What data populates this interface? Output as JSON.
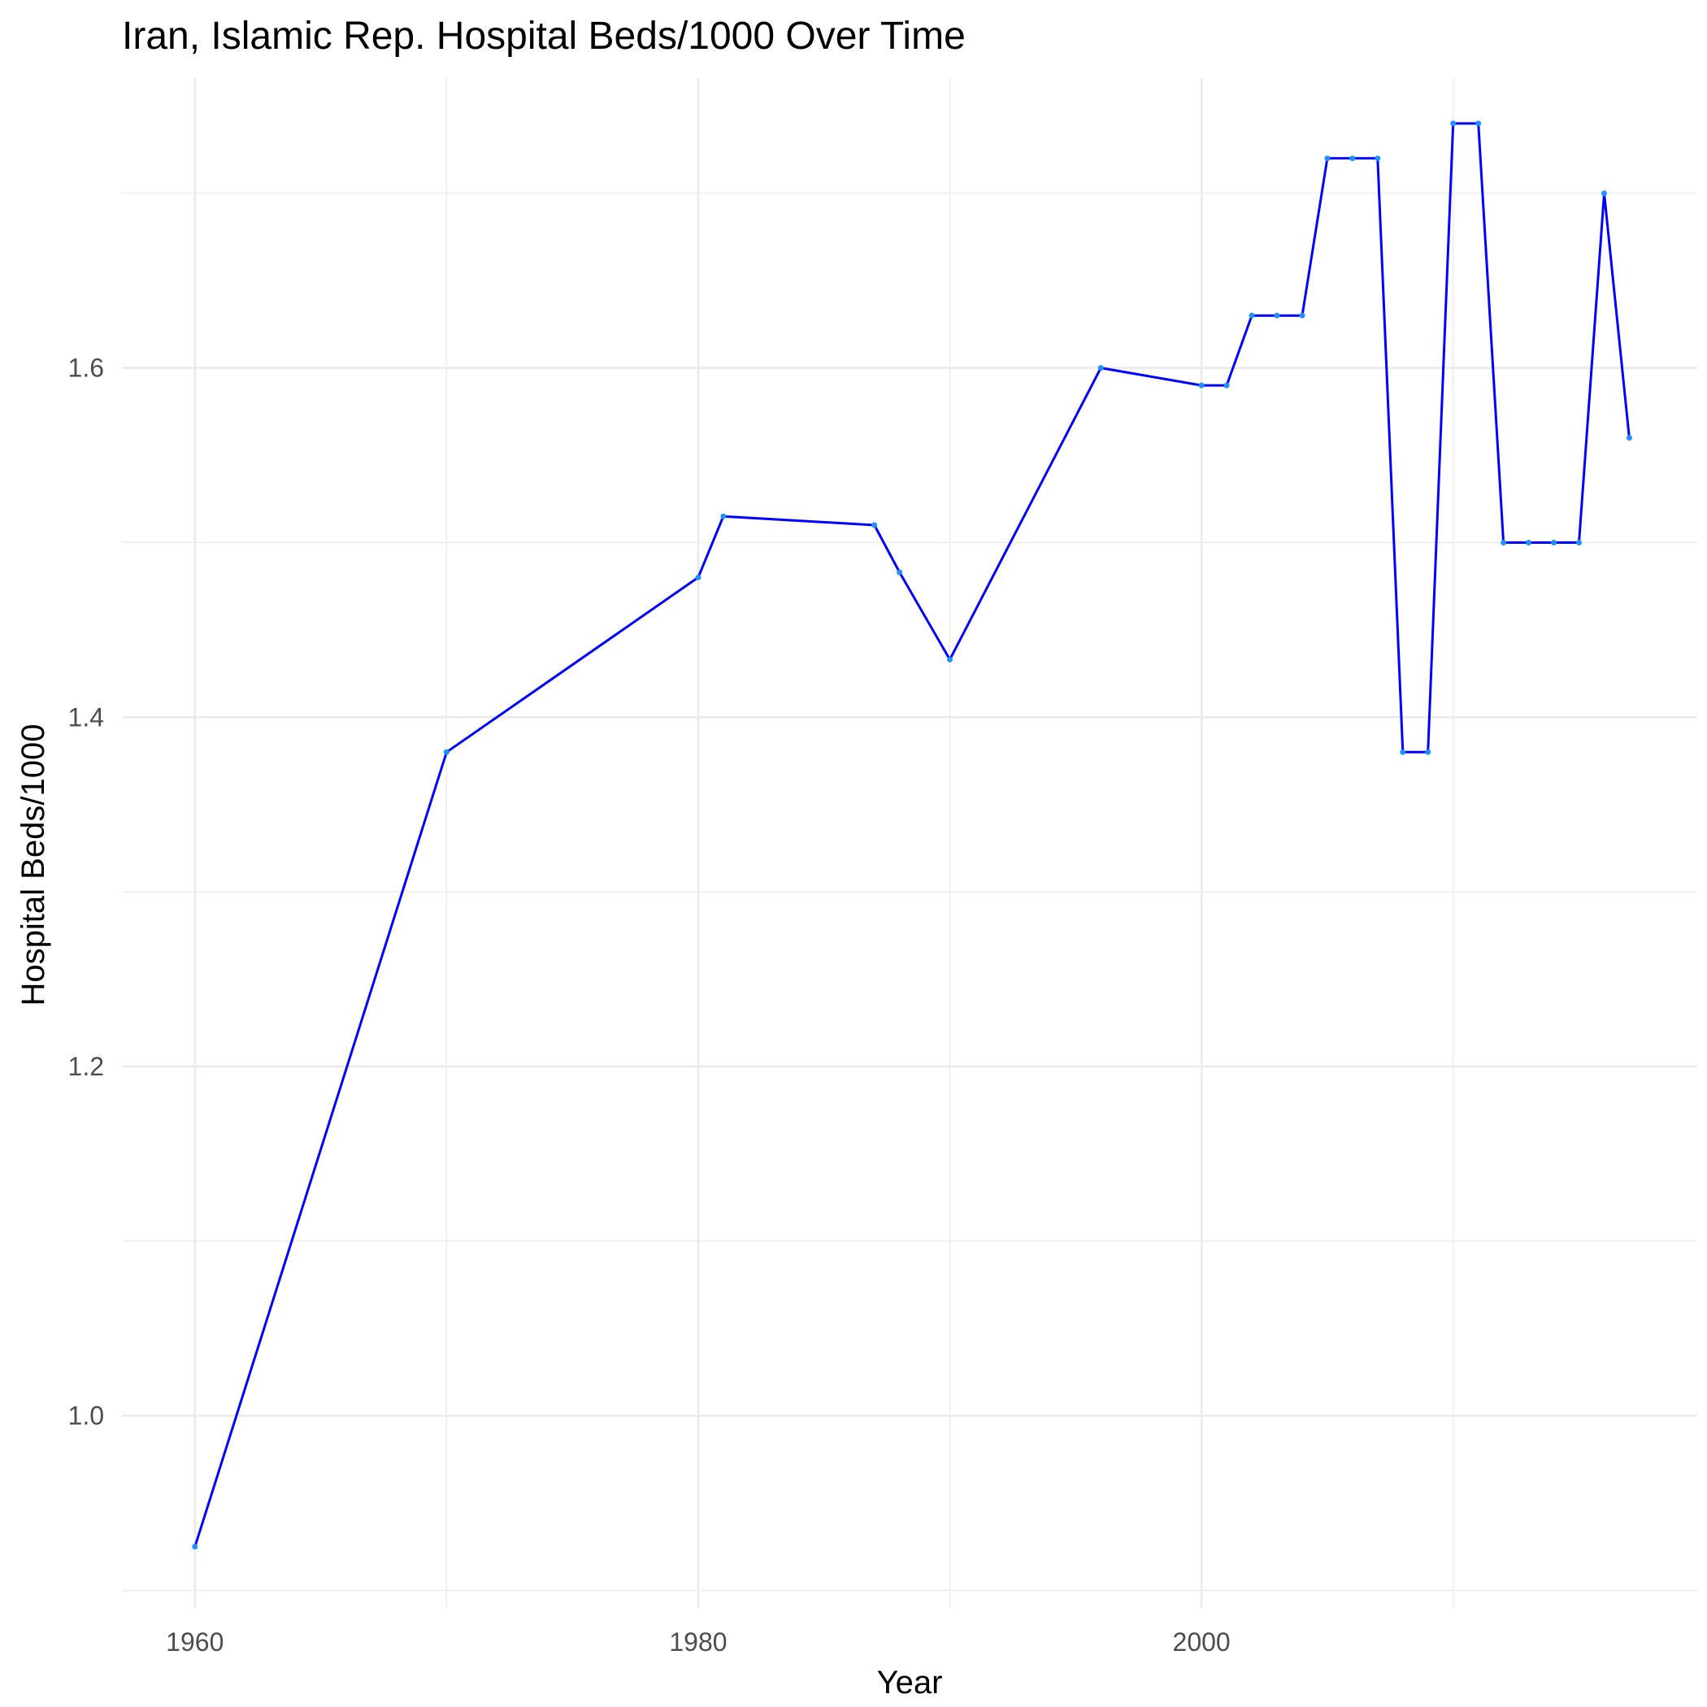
{
  "chart_data": {
    "type": "line",
    "title": "Iran, Islamic Rep. Hospital Beds/1000 Over Time",
    "xlabel": "Year",
    "ylabel": "Hospital Beds/1000",
    "xlim": [
      1957.1,
      2019.7
    ],
    "ylim": [
      0.89,
      1.766
    ],
    "x_ticks": [
      1960,
      1980,
      2000
    ],
    "x_minor_ticks": [
      1970,
      1990,
      2010
    ],
    "y_ticks": [
      1.0,
      1.2,
      1.4,
      1.6
    ],
    "y_minor_ticks": [
      0.9,
      1.1,
      1.3,
      1.5,
      1.7
    ],
    "y_tick_labels": [
      "1.0",
      "1.2",
      "1.4",
      "1.6"
    ],
    "grid": true,
    "line_color": "#0000ff",
    "point_color": "#1e90ff",
    "series": [
      {
        "x": [
          1960,
          1970,
          1980,
          1981,
          1987,
          1988,
          1990,
          1996,
          2000,
          2001,
          2002,
          2003,
          2004,
          2005,
          2006,
          2007,
          2008,
          2009,
          2010,
          2011,
          2012,
          2013,
          2014,
          2015,
          2016,
          2017
        ],
        "values": [
          0.925,
          1.38,
          1.48,
          1.515,
          1.51,
          1.483,
          1.433,
          1.6,
          1.59,
          1.59,
          1.63,
          1.63,
          1.63,
          1.72,
          1.72,
          1.72,
          1.38,
          1.38,
          1.74,
          1.74,
          1.5,
          1.5,
          1.5,
          1.5,
          1.7,
          1.56
        ]
      }
    ]
  }
}
